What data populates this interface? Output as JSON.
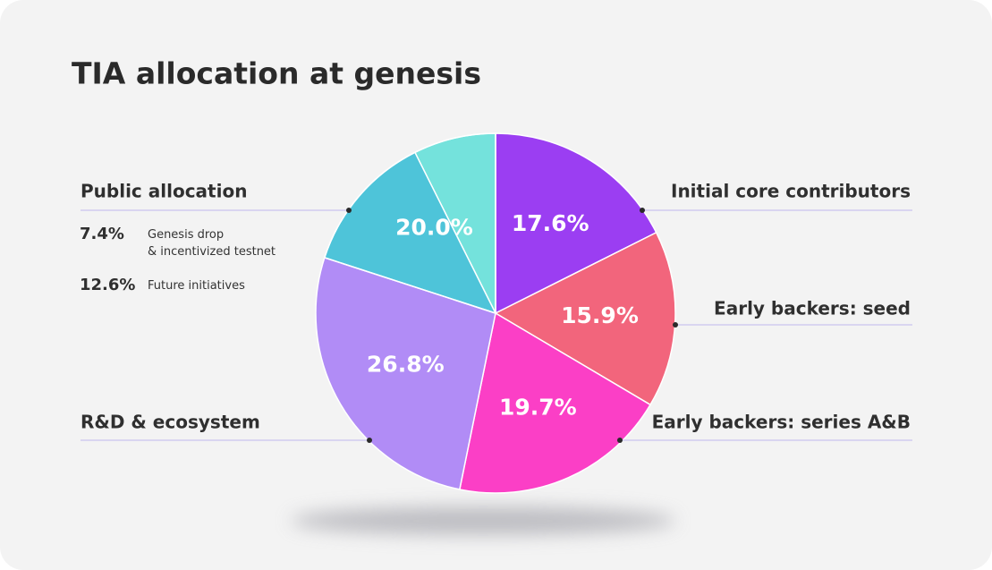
{
  "chart_data": {
    "type": "pie",
    "title": "TIA allocation at genesis",
    "categories": [
      "Initial core contributors",
      "Early backers: seed",
      "Early backers: series A&B",
      "R&D & ecosystem",
      "Public allocation"
    ],
    "values": [
      17.6,
      15.9,
      19.7,
      26.8,
      20.0
    ],
    "value_labels": [
      "17.6%",
      "15.9%",
      "19.7%",
      "26.8%",
      "20.0%"
    ],
    "colors": [
      "#9b3ef2",
      "#f2657c",
      "#fb3fc6",
      "#b18cf6",
      "#4ec4d9"
    ],
    "public_allocation": {
      "labels": [
        "Genesis drop & incentivized testnet",
        "Future initiatives"
      ],
      "values": [
        7.4,
        12.6
      ],
      "value_labels": [
        "7.4%",
        "12.6%"
      ],
      "colors": [
        "#74e2dc",
        "#4ec4d9"
      ]
    }
  }
}
